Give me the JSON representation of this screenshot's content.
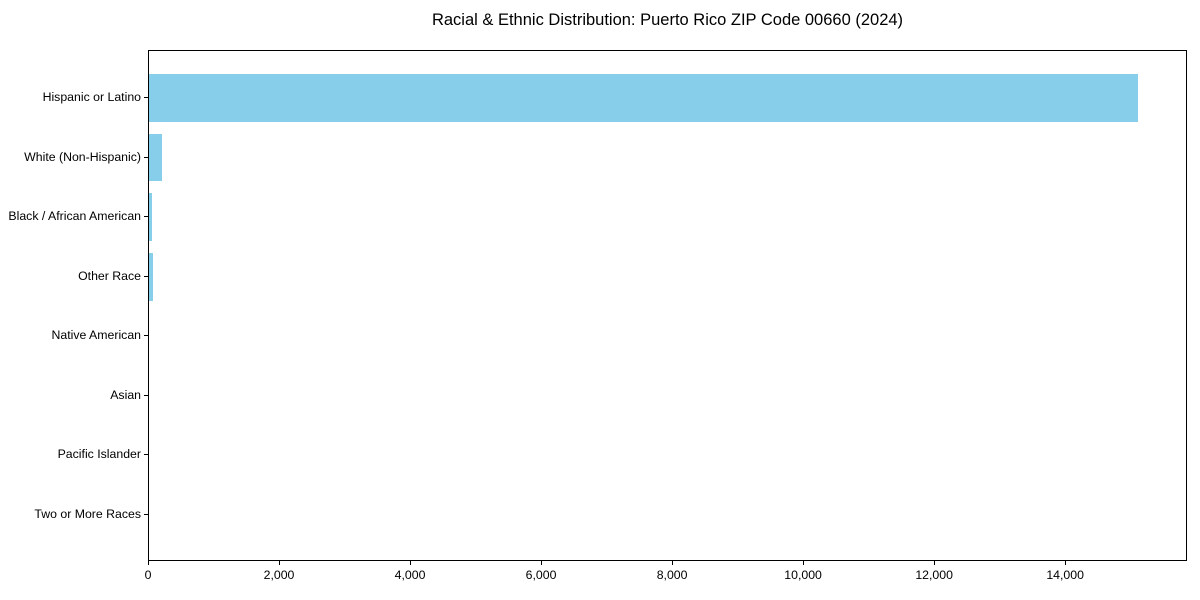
{
  "title": "Racial & Ethnic Distribution: Puerto Rico ZIP Code 00660 (2024)",
  "chart_data": {
    "type": "bar",
    "orientation": "horizontal",
    "title": "Racial & Ethnic Distribution: Puerto Rico ZIP Code 00660 (2024)",
    "xlabel": "",
    "ylabel": "",
    "categories": [
      "Hispanic or Latino",
      "White (Non-Hispanic)",
      "Black / African American",
      "Other Race",
      "Native American",
      "Asian",
      "Pacific Islander",
      "Two or More Races"
    ],
    "values": [
      15100,
      200,
      45,
      60,
      0,
      0,
      0,
      0
    ],
    "xlim": [
      0,
      15860
    ],
    "xticks": [
      0,
      2000,
      4000,
      6000,
      8000,
      10000,
      12000,
      14000
    ],
    "xtick_labels": [
      "0",
      "2,000",
      "4,000",
      "6,000",
      "8,000",
      "10,000",
      "12,000",
      "14,000"
    ],
    "grid": false,
    "legend": null,
    "bar_color": "#87CEEB",
    "axis_color": "#000000",
    "text_color": "#000000",
    "background_color": "#ffffff"
  }
}
